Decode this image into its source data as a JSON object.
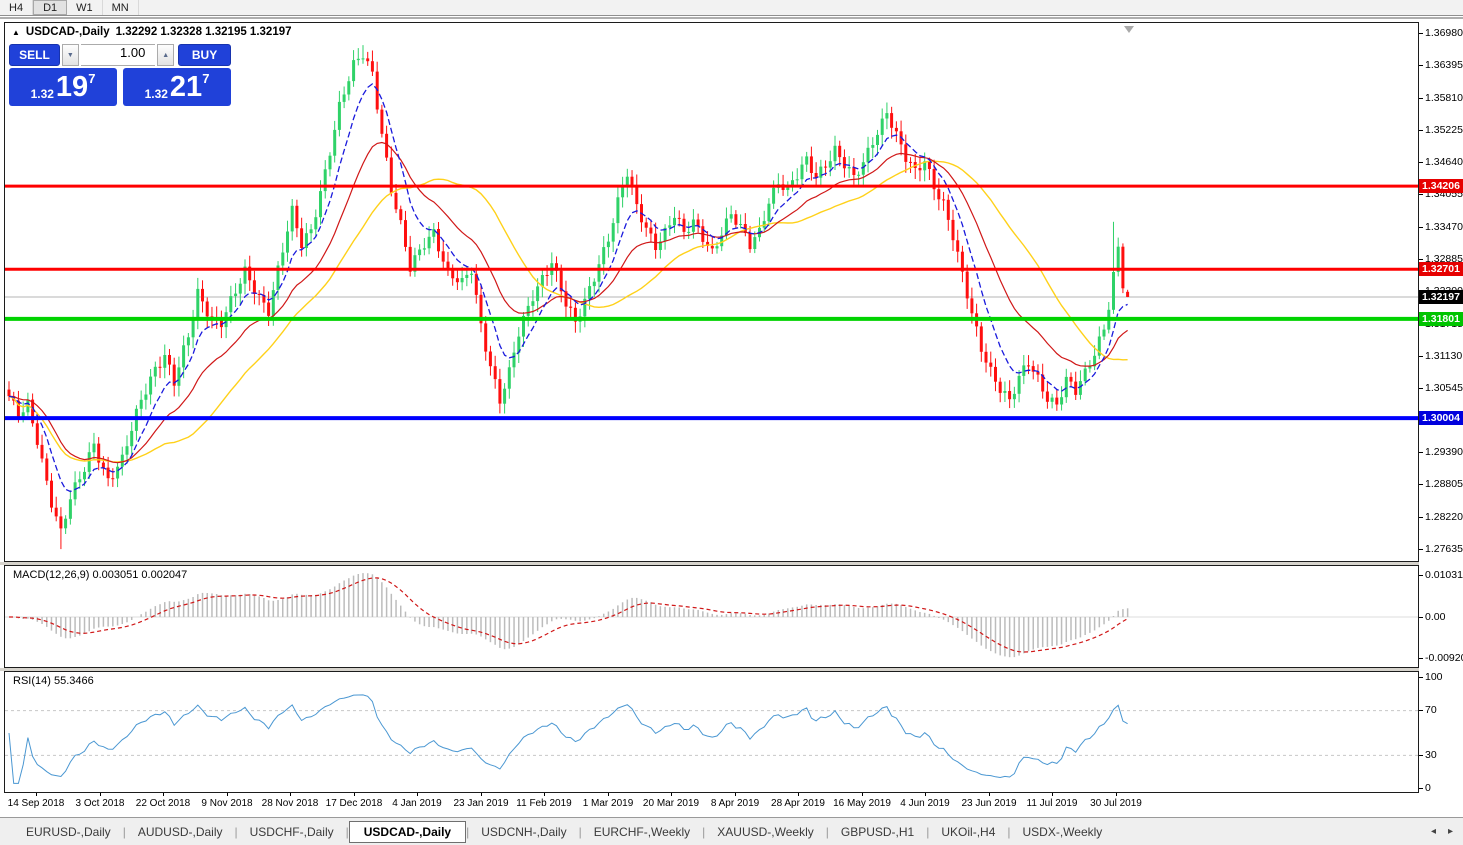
{
  "toolbar": {
    "timeframes": [
      "H4",
      "D1",
      "W1",
      "MN"
    ],
    "active": "D1"
  },
  "chart_header": {
    "marker": "▲",
    "title": "USDCAD-,Daily",
    "ohlc": "1.32292 1.32328 1.32195 1.32197"
  },
  "trade_panel": {
    "sell_label": "SELL",
    "buy_label": "BUY",
    "volume": "1.00",
    "spinner_down": "▼",
    "spinner_up": "▲",
    "sell_price": {
      "prefix": "1.32",
      "big": "19",
      "sup": "7"
    },
    "buy_price": {
      "prefix": "1.32",
      "big": "21",
      "sup": "7"
    }
  },
  "price_axis": {
    "ticks": [
      "1.36980",
      "1.36395",
      "1.35810",
      "1.35225",
      "1.34640",
      "1.34055",
      "1.33470",
      "1.32885",
      "1.32300",
      "1.31715",
      "1.31130",
      "1.30545",
      "1.29390",
      "1.28805",
      "1.28220",
      "1.27635"
    ],
    "badges": [
      {
        "text": "1.34206",
        "color": "#e60000"
      },
      {
        "text": "1.32701",
        "color": "#e60000"
      },
      {
        "text": "1.31801",
        "color": "#00c400"
      },
      {
        "text": "1.32197",
        "color": "#000000"
      },
      {
        "text": "1.30004",
        "color": "#0000dd"
      }
    ]
  },
  "macd_panel": {
    "label": "MACD(12,26,9) 0.003051 0.002047",
    "axis_ticks": [
      "0.010311",
      "0.00",
      "-0.009203"
    ]
  },
  "rsi_panel": {
    "label": "RSI(14) 55.3466",
    "axis_ticks": [
      "100",
      "70",
      "30",
      "0"
    ]
  },
  "date_axis": [
    "14 Sep 2018",
    "3 Oct 2018",
    "22 Oct 2018",
    "9 Nov 2018",
    "28 Nov 2018",
    "17 Dec 2018",
    "4 Jan 2019",
    "23 Jan 2019",
    "11 Feb 2019",
    "1 Mar 2019",
    "20 Mar 2019",
    "8 Apr 2019",
    "28 Apr 2019",
    "16 May 2019",
    "4 Jun 2019",
    "23 Jun 2019",
    "11 Jul 2019",
    "30 Jul 2019"
  ],
  "tab_bar": {
    "tabs": [
      "EURUSD-,Daily",
      "AUDUSD-,Daily",
      "USDCHF-,Daily",
      "USDCAD-,Daily",
      "USDCNH-,Daily",
      "EURCHF-,Weekly",
      "XAUUSD-,Weekly",
      "GBPUSD-,H1",
      "UKOil-,H4",
      "USDX-,Weekly"
    ],
    "active": "USDCAD-,Daily",
    "scroll_left": "◂",
    "scroll_right": "▸"
  },
  "chart_data": {
    "type": "candlestick+indicators",
    "symbol": "USDCAD",
    "timeframe": "Daily",
    "bars": 238,
    "y_axis": {
      "top": 1.3698,
      "bottom": 1.27635
    },
    "bid": "1.32197",
    "ask": "1.32217",
    "last_bar": {
      "open": 1.32292,
      "high": 1.32328,
      "low": 1.32195,
      "close": 1.32197
    },
    "current_price": 1.32197,
    "levels": [
      {
        "price": 1.34206,
        "color": "#ff0000",
        "width": 3
      },
      {
        "price": 1.32701,
        "color": "#ff0000",
        "width": 3
      },
      {
        "price": 1.31801,
        "color": "#00d300",
        "width": 4
      },
      {
        "price": 1.30004,
        "color": "#0000ff",
        "width": 4
      }
    ],
    "price_waypoints": [
      [
        0,
        1.3035
      ],
      [
        2,
        1.3
      ],
      [
        4,
        1.3025
      ],
      [
        6,
        1.2965
      ],
      [
        9,
        1.285
      ],
      [
        11,
        1.279
      ],
      [
        13,
        1.285
      ],
      [
        16,
        1.291
      ],
      [
        18,
        1.2958
      ],
      [
        21,
        1.2888
      ],
      [
        24,
        1.292
      ],
      [
        28,
        1.3035
      ],
      [
        31,
        1.3095
      ],
      [
        33,
        1.3115
      ],
      [
        35,
        1.3062
      ],
      [
        38,
        1.3145
      ],
      [
        40,
        1.3228
      ],
      [
        43,
        1.3185
      ],
      [
        45,
        1.3175
      ],
      [
        48,
        1.3225
      ],
      [
        50,
        1.3262
      ],
      [
        53,
        1.3222
      ],
      [
        55,
        1.32
      ],
      [
        58,
        1.3305
      ],
      [
        60,
        1.337
      ],
      [
        62,
        1.3312
      ],
      [
        64,
        1.3342
      ],
      [
        67,
        1.345
      ],
      [
        70,
        1.3562
      ],
      [
        73,
        1.3635
      ],
      [
        75,
        1.366
      ],
      [
        77,
        1.3628
      ],
      [
        79,
        1.352
      ],
      [
        81,
        1.3415
      ],
      [
        83,
        1.3345
      ],
      [
        85,
        1.3268
      ],
      [
        88,
        1.332
      ],
      [
        90,
        1.3342
      ],
      [
        93,
        1.3262
      ],
      [
        96,
        1.324
      ],
      [
        98,
        1.3268
      ],
      [
        100,
        1.317
      ],
      [
        102,
        1.31
      ],
      [
        104,
        1.3035
      ],
      [
        106,
        1.308
      ],
      [
        108,
        1.315
      ],
      [
        111,
        1.3222
      ],
      [
        113,
        1.3258
      ],
      [
        115,
        1.3288
      ],
      [
        118,
        1.3205
      ],
      [
        120,
        1.3168
      ],
      [
        122,
        1.321
      ],
      [
        125,
        1.3285
      ],
      [
        127,
        1.333
      ],
      [
        129,
        1.339
      ],
      [
        131,
        1.344
      ],
      [
        133,
        1.338
      ],
      [
        135,
        1.3345
      ],
      [
        137,
        1.3318
      ],
      [
        139,
        1.334
      ],
      [
        141,
        1.3368
      ],
      [
        143,
        1.333
      ],
      [
        145,
        1.3352
      ],
      [
        147,
        1.333
      ],
      [
        149,
        1.3305
      ],
      [
        151,
        1.334
      ],
      [
        153,
        1.3368
      ],
      [
        155,
        1.334
      ],
      [
        157,
        1.3312
      ],
      [
        159,
        1.334
      ],
      [
        161,
        1.3398
      ],
      [
        163,
        1.343
      ],
      [
        165,
        1.3412
      ],
      [
        167,
        1.3436
      ],
      [
        169,
        1.3465
      ],
      [
        171,
        1.344
      ],
      [
        173,
        1.3465
      ],
      [
        175,
        1.3488
      ],
      [
        177,
        1.3458
      ],
      [
        179,
        1.343
      ],
      [
        181,
        1.346
      ],
      [
        183,
        1.3505
      ],
      [
        185,
        1.354
      ],
      [
        186,
        1.356
      ],
      [
        188,
        1.3512
      ],
      [
        190,
        1.3468
      ],
      [
        192,
        1.3442
      ],
      [
        194,
        1.3468
      ],
      [
        196,
        1.3425
      ],
      [
        198,
        1.3392
      ],
      [
        200,
        1.333
      ],
      [
        202,
        1.3255
      ],
      [
        204,
        1.3185
      ],
      [
        206,
        1.3128
      ],
      [
        208,
        1.309
      ],
      [
        210,
        1.3058
      ],
      [
        212,
        1.303
      ],
      [
        214,
        1.3068
      ],
      [
        216,
        1.3098
      ],
      [
        218,
        1.3072
      ],
      [
        220,
        1.3042
      ],
      [
        222,
        1.3028
      ],
      [
        224,
        1.3068
      ],
      [
        226,
        1.3045
      ],
      [
        228,
        1.3078
      ],
      [
        230,
        1.312
      ],
      [
        232,
        1.3168
      ],
      [
        233,
        1.321
      ],
      [
        234,
        1.3262
      ],
      [
        235,
        1.3308
      ],
      [
        236,
        1.3242
      ],
      [
        237,
        1.32197
      ]
    ],
    "forced_extremes": [
      {
        "i": 11,
        "low": 1.2763
      },
      {
        "i": 75,
        "high": 1.3676
      },
      {
        "i": 131,
        "high": 1.3452
      },
      {
        "i": 234,
        "high": 1.3356
      }
    ],
    "indicators": {
      "ma_fast_period": 8,
      "ma_mid_period": 21,
      "ma_slow_period": 34,
      "macd": {
        "fast": 12,
        "slow": 26,
        "signal": 9,
        "value": 0.003051,
        "signal_value": 0.002047,
        "axis_max": 0.010311,
        "axis_min": -0.009203
      },
      "rsi": {
        "period": 14,
        "value": 55.3466,
        "levels": [
          70,
          30
        ]
      }
    },
    "colors": {
      "up": "#2fd268",
      "down": "#ff0f0f",
      "ma_fast": "#1a1adc",
      "ma_mid": "#d01818",
      "ma_slow": "#ffd11a",
      "macd_hist": "#bcbcbc",
      "macd_signal": "#d01818",
      "rsi_line": "#4a97d2",
      "current_line": "#b5b5b5"
    }
  }
}
